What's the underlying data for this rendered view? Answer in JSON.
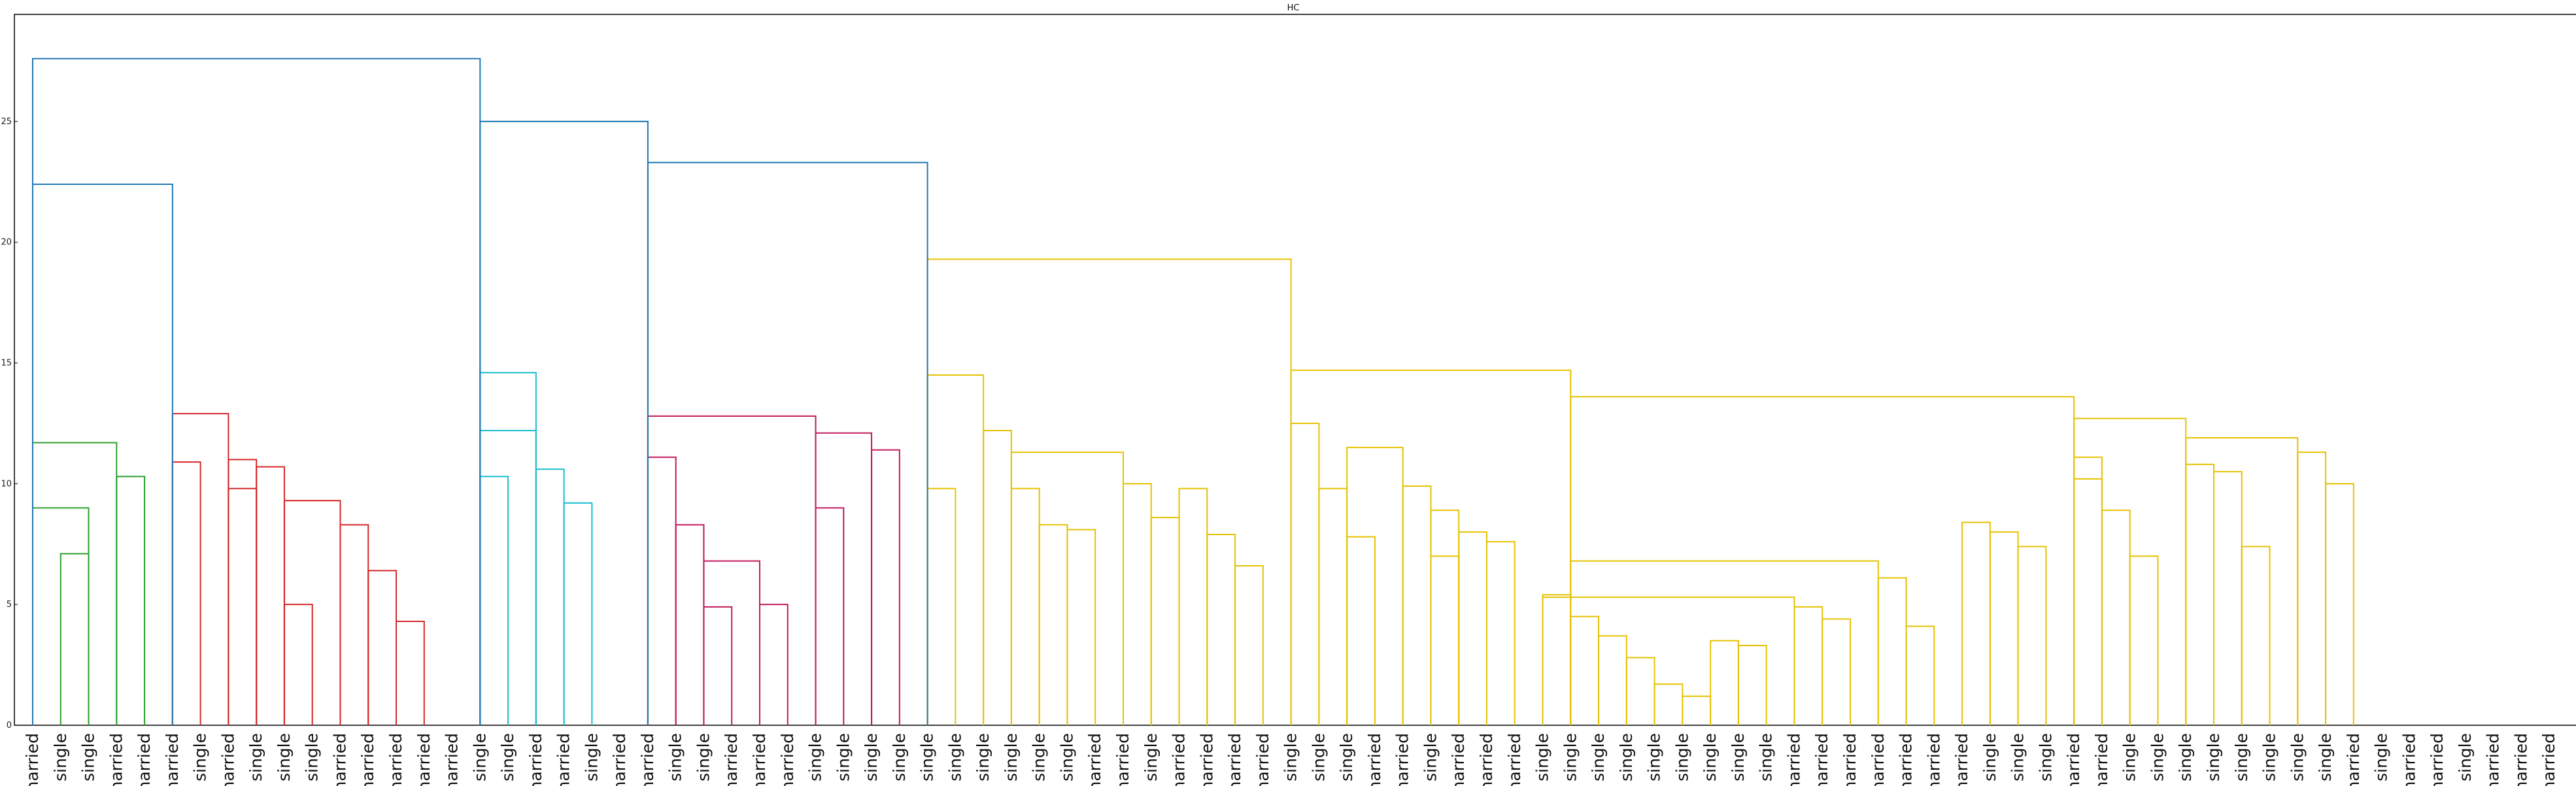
{
  "chart_data": {
    "type": "dendrogram",
    "title": "HC",
    "xlabel": "",
    "ylabel": "",
    "ylim": [
      0,
      28
    ],
    "yticks": [
      0,
      5,
      10,
      15,
      20,
      25
    ],
    "grid": false,
    "leaf_labels": [
      "married",
      "single",
      "single",
      "married",
      "married",
      "married",
      "single",
      "married",
      "single",
      "single",
      "single",
      "married",
      "married",
      "married",
      "married",
      "married",
      "single",
      "single",
      "married",
      "married",
      "single",
      "married",
      "married",
      "single",
      "single",
      "married",
      "married",
      "married",
      "single",
      "single",
      "single",
      "single",
      "single",
      "single",
      "single",
      "single",
      "single",
      "single",
      "married",
      "married",
      "single",
      "married",
      "married",
      "married",
      "married",
      "single",
      "single",
      "single",
      "married",
      "married",
      "single",
      "married",
      "married",
      "married",
      "single",
      "single",
      "single",
      "single",
      "single",
      "single",
      "single",
      "single",
      "single",
      "married",
      "married",
      "married",
      "married",
      "married",
      "married",
      "married",
      "single",
      "single",
      "single",
      "married",
      "married",
      "single",
      "single",
      "single",
      "single",
      "single",
      "single",
      "single",
      "single",
      "married",
      "single",
      "married",
      "married",
      "single",
      "married",
      "married",
      "married"
    ],
    "clusters": [
      {
        "color": "#2ca02c",
        "leaf_range": [
          0,
          4
        ],
        "height": 11.7
      },
      {
        "color": "#d62728",
        "leaf_range": [
          5,
          15
        ],
        "height": 12.9
      },
      {
        "color": "#17becf",
        "leaf_range": [
          16,
          21
        ],
        "height": 14.6
      },
      {
        "color": "#c2185b",
        "leaf_range": [
          22,
          31
        ],
        "height": 12.8
      },
      {
        "color": "#e6c200",
        "leaf_range": [
          32,
          90
        ],
        "height": 19.3
      }
    ],
    "link_color_above": "#1f77b4",
    "links": [
      [
        1,
        2,
        7.1
      ],
      [
        0,
        2,
        9.0
      ],
      [
        3,
        4,
        10.3
      ],
      [
        0,
        3,
        11.7
      ],
      [
        9,
        10,
        5.0
      ],
      [
        13,
        14,
        4.3
      ],
      [
        12,
        13,
        6.4
      ],
      [
        11,
        12,
        8.3
      ],
      [
        9,
        11,
        9.3
      ],
      [
        8,
        9,
        10.7
      ],
      [
        7,
        8,
        9.8
      ],
      [
        7,
        8,
        11.0
      ],
      [
        5,
        6,
        10.9
      ],
      [
        5,
        7,
        12.9
      ],
      [
        16,
        17,
        10.3
      ],
      [
        18,
        19,
        10.6
      ],
      [
        19,
        20,
        9.2
      ],
      [
        16,
        18,
        12.2
      ],
      [
        16,
        18,
        14.6
      ],
      [
        24,
        25,
        4.9
      ],
      [
        26,
        27,
        5.0
      ],
      [
        24,
        26,
        6.8
      ],
      [
        23,
        24,
        8.3
      ],
      [
        22,
        23,
        11.1
      ],
      [
        28,
        29,
        9.0
      ],
      [
        30,
        31,
        11.4
      ],
      [
        28,
        30,
        12.1
      ],
      [
        22,
        28,
        12.8
      ],
      [
        32,
        33,
        9.8
      ],
      [
        36,
        37,
        8.3
      ],
      [
        37,
        38,
        8.1
      ],
      [
        35,
        36,
        9.8
      ],
      [
        40,
        41,
        8.6
      ],
      [
        39,
        40,
        10.0
      ],
      [
        35,
        39,
        11.3
      ],
      [
        34,
        35,
        12.2
      ],
      [
        32,
        34,
        14.5
      ],
      [
        43,
        44,
        6.6
      ],
      [
        42,
        43,
        7.9
      ],
      [
        41,
        42,
        9.8
      ],
      [
        47,
        48,
        7.8
      ],
      [
        50,
        51,
        7.0
      ],
      [
        52,
        53,
        7.6
      ],
      [
        51,
        52,
        8.0
      ],
      [
        50,
        51,
        8.9
      ],
      [
        49,
        50,
        9.9
      ],
      [
        47,
        49,
        11.5
      ],
      [
        46,
        47,
        9.8
      ],
      [
        45,
        46,
        12.5
      ],
      [
        59,
        60,
        1.2
      ],
      [
        58,
        59,
        1.7
      ],
      [
        57,
        58,
        2.8
      ],
      [
        56,
        57,
        3.7
      ],
      [
        61,
        62,
        3.3
      ],
      [
        60,
        61,
        3.5
      ],
      [
        55,
        56,
        4.5
      ],
      [
        63,
        64,
        4.9
      ],
      [
        64,
        65,
        4.4
      ],
      [
        54,
        55,
        5.4
      ],
      [
        54,
        63,
        5.3
      ],
      [
        66,
        67,
        6.1
      ],
      [
        67,
        68,
        4.1
      ],
      [
        55,
        66,
        6.8
      ],
      [
        70,
        71,
        8.0
      ],
      [
        71,
        72,
        7.4
      ],
      [
        69,
        70,
        8.4
      ],
      [
        73,
        74,
        10.2
      ],
      [
        74,
        75,
        8.9
      ],
      [
        75,
        76,
        7.0
      ],
      [
        73,
        74,
        11.1
      ],
      [
        77,
        78,
        10.8
      ],
      [
        78,
        79,
        10.5
      ],
      [
        79,
        80,
        7.4
      ],
      [
        81,
        82,
        11.3
      ],
      [
        82,
        83,
        10.0
      ],
      [
        77,
        81,
        11.9
      ],
      [
        73,
        77,
        12.7
      ],
      [
        55,
        73,
        13.6
      ],
      [
        45,
        55,
        14.7
      ],
      [
        32,
        45,
        19.3
      ],
      [
        0,
        5,
        22.4
      ],
      [
        22,
        32,
        23.3
      ],
      [
        16,
        22,
        25.0
      ],
      [
        0,
        16,
        27.6
      ]
    ]
  }
}
